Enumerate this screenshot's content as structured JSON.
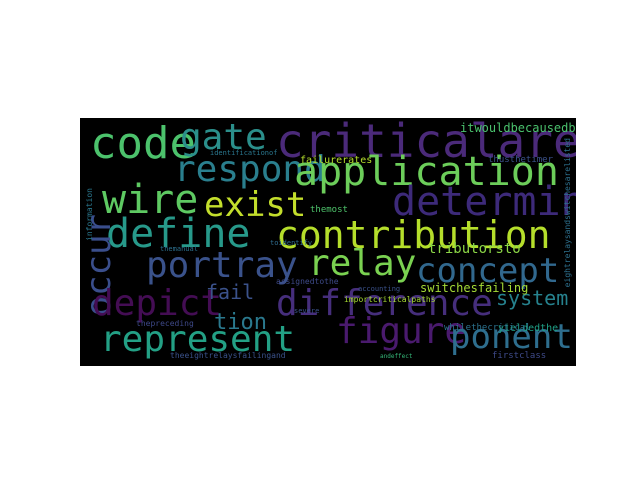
{
  "background": "#000000",
  "words": [
    {
      "text": "criticalarea",
      "color": "#4b2a7a"
    },
    {
      "text": "code",
      "color": "#4cc26c"
    },
    {
      "text": "gate",
      "color": "#2b8f8b"
    },
    {
      "text": "respond",
      "color": "#2a7f8e"
    },
    {
      "text": "application",
      "color": "#6ccd5a"
    },
    {
      "text": "wire",
      "color": "#5ec962"
    },
    {
      "text": "exist",
      "color": "#c3de2c"
    },
    {
      "text": "determine",
      "color": "#3d2a7a"
    },
    {
      "text": "define",
      "color": "#27998a"
    },
    {
      "text": "contribution",
      "color": "#b5de2b"
    },
    {
      "text": "occur",
      "color": "#3a4e8c"
    },
    {
      "text": "portray",
      "color": "#3a528b"
    },
    {
      "text": "relay",
      "color": "#7ad151"
    },
    {
      "text": "concept",
      "color": "#31688e"
    },
    {
      "text": "depict",
      "color": "#440d54"
    },
    {
      "text": "difference",
      "color": "#462e7c"
    },
    {
      "text": "fail",
      "color": "#3b528b"
    },
    {
      "text": "system",
      "color": "#26828e"
    },
    {
      "text": "represent",
      "color": "#23a085"
    },
    {
      "text": "figure",
      "color": "#4a1a6e"
    },
    {
      "text": "ponent",
      "color": "#2e6e8e"
    },
    {
      "text": "tion",
      "color": "#2a798e"
    },
    {
      "text": "itwouldbecausedby",
      "color": "#4ac16d"
    },
    {
      "text": "tributorsto",
      "color": "#8bd646"
    },
    {
      "text": "switchesfailing",
      "color": "#a5db36"
    },
    {
      "text": "failurerates",
      "color": "#b5de2b"
    },
    {
      "text": "thusthetimer",
      "color": "#3b528b"
    },
    {
      "text": "yieldedthe",
      "color": "#1fa187"
    },
    {
      "text": "whilethecritical",
      "color": "#2c728e"
    },
    {
      "text": "thepreceding",
      "color": "#3e4989"
    },
    {
      "text": "theeightrelaysfailingand",
      "color": "#3b528b"
    },
    {
      "text": "firstclass",
      "color": "#3e4a89"
    },
    {
      "text": "importcriticalpaths",
      "color": "#a8db34"
    },
    {
      "text": "assignedtothe",
      "color": "#3e4a89"
    },
    {
      "text": "themost",
      "color": "#4ec36b"
    },
    {
      "text": "identificationof",
      "color": "#2a778e"
    },
    {
      "text": "toidentify",
      "color": "#2f6c8e"
    },
    {
      "text": "accounting",
      "color": "#3b528b"
    },
    {
      "text": "severe",
      "color": "#3b528b"
    },
    {
      "text": "themanual",
      "color": "#2d708e"
    },
    {
      "text": "information",
      "color": "#2a778e"
    },
    {
      "text": "andeffect",
      "color": "#35b779"
    },
    {
      "text": "eightrelaysandswitchesarelisted",
      "color": "#2d708e"
    }
  ]
}
